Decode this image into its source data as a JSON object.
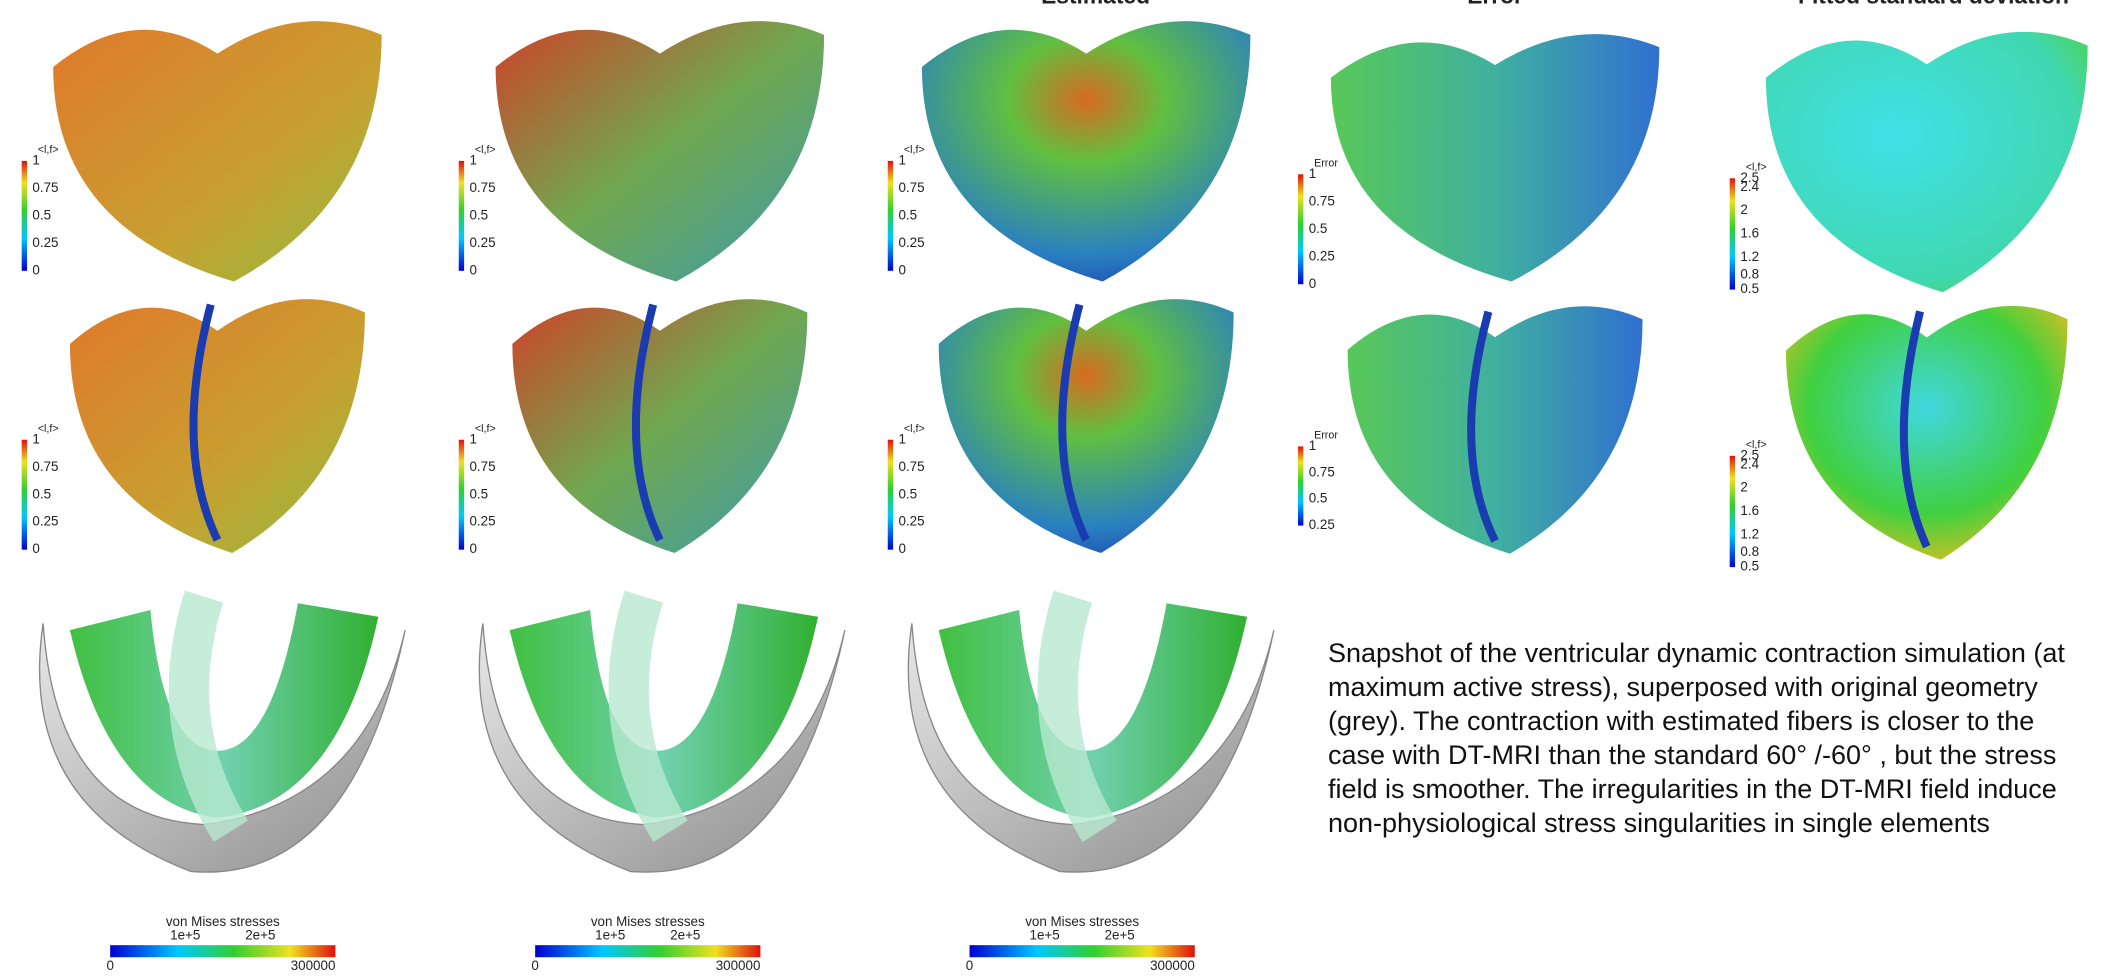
{
  "column_titles": [
    "Estimated",
    "Error",
    "Fitted standard deviation"
  ],
  "fiber_colorbar": {
    "label": "<l,f>",
    "ticks": [
      "1",
      "0.75",
      "0.5",
      "0.25",
      "0"
    ]
  },
  "error_colorbar_top": {
    "label": "Error",
    "ticks": [
      "1",
      "0.75",
      "0.5",
      "0.25",
      "0"
    ]
  },
  "error_colorbar_bottom": {
    "label": "Error",
    "ticks": [
      "1",
      "0.75",
      "0.5",
      "0.25"
    ]
  },
  "sd_colorbar": {
    "label": "<l,f>",
    "ticks": [
      "2.5",
      "2.4",
      "2",
      "1.6",
      "1.2",
      "0.8",
      "0.5"
    ]
  },
  "stress_colorbar": {
    "label": "von Mises stresses",
    "ticks": [
      "1e+5",
      "2e+5"
    ],
    "min": "0",
    "max": "300000"
  },
  "caption": "Snapshot of the ventricular dynamic contraction simulation (at maximum active stress), superposed with original geometry (grey). The contraction with estimated fibers is closer to the case with DT-MRI than the standard 60° /-60° , but the stress field is smoother. The irregularities in the DT-MRI field induce non-physiological stress singularities in single elements"
}
